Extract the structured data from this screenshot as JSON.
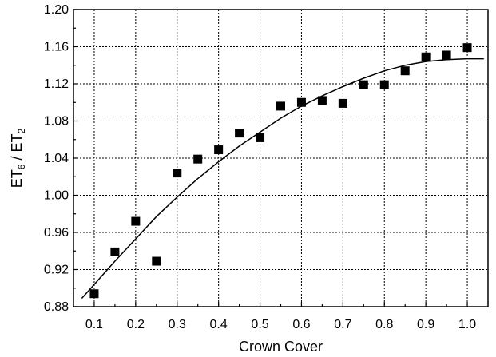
{
  "chart_data": {
    "type": "scatter",
    "title": "",
    "xlabel": "Crown Cover",
    "ylabel": {
      "base1": "ET",
      "sub1": "6",
      "sep": " / ",
      "base2": "ET",
      "sub2": "2"
    },
    "xlim": [
      0.05,
      1.05
    ],
    "ylim": [
      0.88,
      1.2
    ],
    "x_ticks": [
      0.1,
      0.2,
      0.3,
      0.4,
      0.5,
      0.6,
      0.7,
      0.8,
      0.9,
      1.0
    ],
    "x_tick_labels": [
      "0.1",
      "0.2",
      "0.3",
      "0.4",
      "0.5",
      "0.6",
      "0.7",
      "0.8",
      "0.9",
      "1.0"
    ],
    "y_ticks": [
      0.88,
      0.92,
      0.96,
      1.0,
      1.04,
      1.08,
      1.12,
      1.16,
      1.2
    ],
    "y_tick_labels": [
      "0.88",
      "0.92",
      "0.96",
      "1.00",
      "1.04",
      "1.08",
      "1.12",
      "1.16",
      "1.20"
    ],
    "grid": true,
    "series": [
      {
        "kind": "markers",
        "marker": "square",
        "color": "#000000",
        "x": [
          0.1,
          0.15,
          0.2,
          0.25,
          0.3,
          0.35,
          0.4,
          0.45,
          0.5,
          0.55,
          0.6,
          0.65,
          0.7,
          0.75,
          0.8,
          0.85,
          0.9,
          0.95,
          1.0
        ],
        "y": [
          0.894,
          0.939,
          0.972,
          0.929,
          1.024,
          1.039,
          1.049,
          1.067,
          1.062,
          1.096,
          1.1,
          1.102,
          1.099,
          1.119,
          1.119,
          1.134,
          1.149,
          1.151,
          1.159
        ]
      },
      {
        "kind": "line",
        "color": "#000000",
        "x": [
          0.07,
          0.1,
          0.15,
          0.2,
          0.25,
          0.3,
          0.35,
          0.4,
          0.45,
          0.5,
          0.55,
          0.6,
          0.65,
          0.7,
          0.75,
          0.8,
          0.85,
          0.9,
          0.95,
          1.0,
          1.04
        ],
        "y": [
          0.889,
          0.904,
          0.929,
          0.953,
          0.977,
          0.998,
          1.018,
          1.036,
          1.053,
          1.068,
          1.083,
          1.096,
          1.107,
          1.117,
          1.126,
          1.134,
          1.14,
          1.144,
          1.146,
          1.147,
          1.147
        ]
      }
    ]
  }
}
